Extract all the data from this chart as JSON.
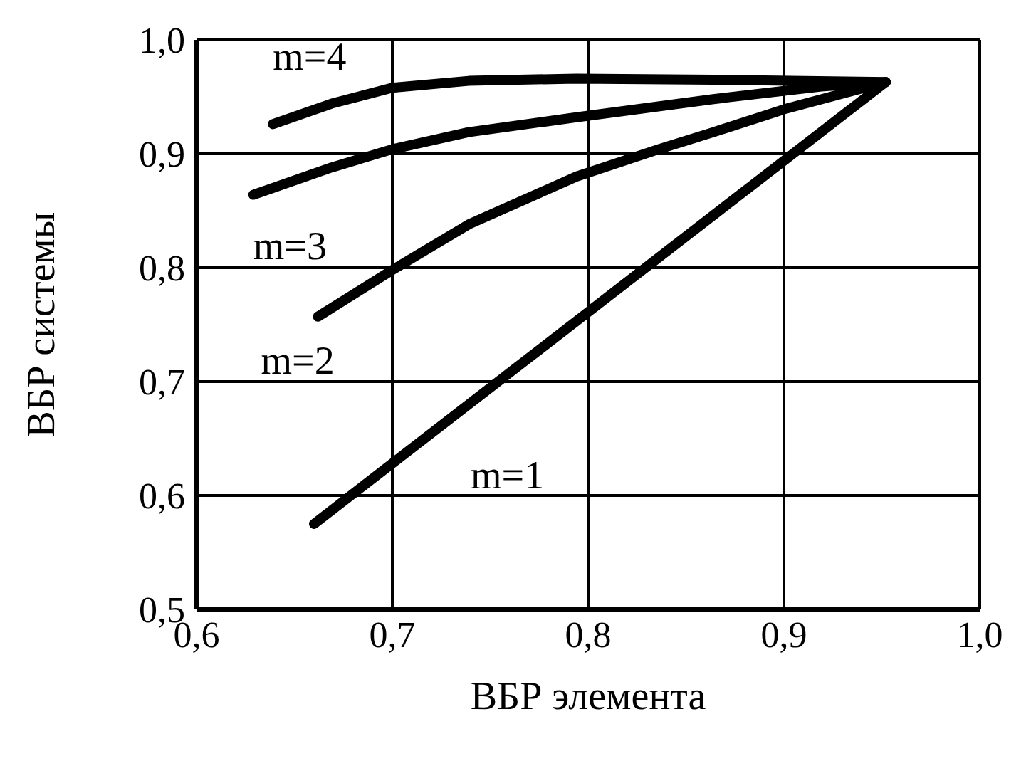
{
  "chart_data": {
    "type": "line",
    "xlabel": "ВБР элемента",
    "ylabel": "ВБР системы",
    "xlim": [
      0.6,
      1.0
    ],
    "ylim": [
      0.5,
      1.0
    ],
    "xticks": [
      {
        "value": 0.6,
        "label": "0,6"
      },
      {
        "value": 0.7,
        "label": "0,7"
      },
      {
        "value": 0.8,
        "label": "0,8"
      },
      {
        "value": 0.9,
        "label": "0,9"
      },
      {
        "value": 1.0,
        "label": "1,0"
      }
    ],
    "yticks": [
      {
        "value": 0.5,
        "label": "0,5"
      },
      {
        "value": 0.6,
        "label": "0,6"
      },
      {
        "value": 0.7,
        "label": "0,7"
      },
      {
        "value": 0.8,
        "label": "0,8"
      },
      {
        "value": 0.9,
        "label": "0,9"
      },
      {
        "value": 1.0,
        "label": "1,0"
      }
    ],
    "grid": true,
    "legend": false,
    "marker": "none",
    "line_style": "solid",
    "series": [
      {
        "name": "m=1",
        "color": "#000000",
        "x": [
          0.66,
          0.952
        ],
        "values": [
          0.575,
          0.963
        ]
      },
      {
        "name": "m=2",
        "color": "#000000",
        "x": [
          0.662,
          0.7,
          0.739,
          0.794,
          0.836,
          0.864,
          0.9,
          0.952
        ],
        "values": [
          0.757,
          0.798,
          0.838,
          0.88,
          0.904,
          0.919,
          0.939,
          0.963
        ]
      },
      {
        "name": "m=3",
        "color": "#000000",
        "x": [
          0.629,
          0.669,
          0.7,
          0.739,
          0.794,
          0.864,
          0.919,
          0.952
        ],
        "values": [
          0.864,
          0.888,
          0.904,
          0.919,
          0.932,
          0.948,
          0.959,
          0.963
        ]
      },
      {
        "name": "m=4",
        "color": "#000000",
        "x": [
          0.639,
          0.669,
          0.7,
          0.739,
          0.794,
          0.864,
          0.952
        ],
        "values": [
          0.926,
          0.944,
          0.958,
          0.964,
          0.966,
          0.965,
          0.963
        ]
      }
    ]
  }
}
